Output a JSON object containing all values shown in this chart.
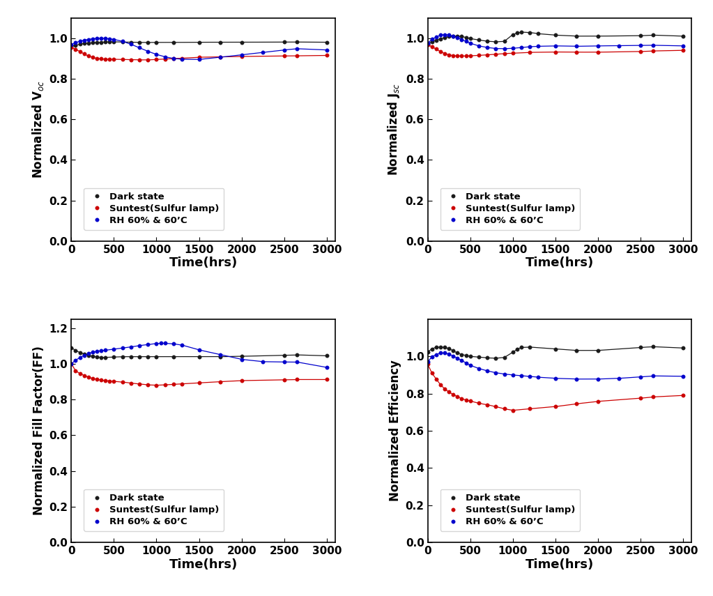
{
  "voc": {
    "dark": {
      "x": [
        0,
        50,
        100,
        150,
        200,
        250,
        300,
        350,
        400,
        450,
        500,
        600,
        700,
        800,
        900,
        1000,
        1200,
        1500,
        1750,
        2000,
        2500,
        2650,
        3000
      ],
      "y": [
        0.96,
        0.965,
        0.97,
        0.974,
        0.976,
        0.978,
        0.979,
        0.98,
        0.981,
        0.982,
        0.982,
        0.981,
        0.98,
        0.979,
        0.979,
        0.979,
        0.979,
        0.98,
        0.98,
        0.98,
        0.981,
        0.981,
        0.98
      ]
    },
    "suntest": {
      "x": [
        0,
        50,
        100,
        150,
        200,
        250,
        300,
        350,
        400,
        450,
        500,
        600,
        700,
        800,
        900,
        1000,
        1100,
        1200,
        1300,
        1500,
        1750,
        2000,
        2500,
        2650,
        3000
      ],
      "y": [
        0.955,
        0.945,
        0.935,
        0.922,
        0.912,
        0.905,
        0.9,
        0.898,
        0.897,
        0.896,
        0.896,
        0.895,
        0.894,
        0.893,
        0.893,
        0.895,
        0.897,
        0.899,
        0.901,
        0.906,
        0.908,
        0.91,
        0.912,
        0.913,
        0.915
      ]
    },
    "rh": {
      "x": [
        0,
        50,
        100,
        150,
        200,
        250,
        300,
        350,
        400,
        450,
        500,
        600,
        700,
        800,
        900,
        1000,
        1100,
        1200,
        1300,
        1500,
        1750,
        2000,
        2250,
        2500,
        2650,
        3000
      ],
      "y": [
        0.968,
        0.978,
        0.985,
        0.99,
        0.994,
        0.997,
        0.999,
        1.0,
        0.999,
        0.997,
        0.994,
        0.985,
        0.97,
        0.953,
        0.935,
        0.92,
        0.908,
        0.9,
        0.896,
        0.895,
        0.906,
        0.918,
        0.93,
        0.942,
        0.948,
        0.942
      ]
    },
    "ylabel": "Normalized V$_{oc}$",
    "ylim": [
      0.0,
      1.1
    ],
    "yticks": [
      0.0,
      0.2,
      0.4,
      0.6,
      0.8,
      1.0
    ]
  },
  "jsc": {
    "dark": {
      "x": [
        0,
        50,
        100,
        150,
        200,
        250,
        300,
        350,
        400,
        450,
        500,
        600,
        700,
        800,
        900,
        1000,
        1050,
        1100,
        1200,
        1300,
        1500,
        1750,
        2000,
        2500,
        2650,
        3000
      ],
      "y": [
        0.972,
        0.982,
        0.99,
        0.997,
        1.003,
        1.008,
        1.01,
        1.01,
        1.008,
        1.004,
        0.998,
        0.991,
        0.985,
        0.982,
        0.984,
        1.018,
        1.025,
        1.03,
        1.028,
        1.022,
        1.015,
        1.01,
        1.01,
        1.012,
        1.015,
        1.01
      ]
    },
    "suntest": {
      "x": [
        0,
        50,
        100,
        150,
        200,
        250,
        300,
        350,
        400,
        450,
        500,
        600,
        700,
        800,
        900,
        1000,
        1200,
        1500,
        1750,
        2000,
        2500,
        2650,
        3000
      ],
      "y": [
        0.968,
        0.958,
        0.946,
        0.934,
        0.924,
        0.918,
        0.914,
        0.912,
        0.912,
        0.912,
        0.913,
        0.915,
        0.918,
        0.921,
        0.924,
        0.926,
        0.93,
        0.932,
        0.931,
        0.931,
        0.934,
        0.937,
        0.94
      ]
    },
    "rh": {
      "x": [
        0,
        50,
        100,
        150,
        200,
        250,
        300,
        350,
        400,
        450,
        500,
        600,
        700,
        800,
        900,
        1000,
        1100,
        1200,
        1300,
        1500,
        1750,
        2000,
        2250,
        2500,
        2650,
        3000
      ],
      "y": [
        0.975,
        0.995,
        1.005,
        1.015,
        1.018,
        1.016,
        1.01,
        1.002,
        0.993,
        0.984,
        0.975,
        0.962,
        0.954,
        0.949,
        0.948,
        0.95,
        0.954,
        0.958,
        0.96,
        0.962,
        0.96,
        0.962,
        0.963,
        0.964,
        0.965,
        0.962
      ]
    },
    "ylabel": "Normalized J$_{sc}$",
    "ylim": [
      0.0,
      1.1
    ],
    "yticks": [
      0.0,
      0.2,
      0.4,
      0.6,
      0.8,
      1.0
    ]
  },
  "ff": {
    "dark": {
      "x": [
        0,
        50,
        100,
        150,
        200,
        250,
        300,
        350,
        400,
        500,
        600,
        700,
        800,
        900,
        1000,
        1200,
        1500,
        1750,
        2000,
        2500,
        2650,
        3000
      ],
      "y": [
        1.09,
        1.075,
        1.063,
        1.055,
        1.048,
        1.042,
        1.038,
        1.036,
        1.036,
        1.038,
        1.04,
        1.04,
        1.04,
        1.04,
        1.04,
        1.04,
        1.04,
        1.04,
        1.042,
        1.048,
        1.05,
        1.045
      ]
    },
    "suntest": {
      "x": [
        0,
        50,
        100,
        150,
        200,
        250,
        300,
        350,
        400,
        450,
        500,
        600,
        700,
        800,
        900,
        1000,
        1100,
        1200,
        1300,
        1500,
        1750,
        2000,
        2500,
        2650,
        3000
      ],
      "y": [
        1.0,
        0.962,
        0.945,
        0.935,
        0.925,
        0.918,
        0.913,
        0.909,
        0.906,
        0.904,
        0.902,
        0.898,
        0.892,
        0.887,
        0.882,
        0.88,
        0.882,
        0.885,
        0.888,
        0.893,
        0.9,
        0.906,
        0.91,
        0.912,
        0.912
      ]
    },
    "rh": {
      "x": [
        0,
        50,
        100,
        150,
        200,
        250,
        300,
        350,
        400,
        500,
        600,
        700,
        800,
        900,
        1000,
        1050,
        1100,
        1200,
        1300,
        1500,
        1750,
        2000,
        2250,
        2500,
        2650,
        3000
      ],
      "y": [
        1.0,
        1.02,
        1.035,
        1.048,
        1.058,
        1.065,
        1.07,
        1.074,
        1.076,
        1.082,
        1.088,
        1.095,
        1.102,
        1.108,
        1.114,
        1.115,
        1.115,
        1.112,
        1.105,
        1.078,
        1.052,
        1.025,
        1.012,
        1.01,
        1.01,
        0.98
      ]
    },
    "ylabel": "Normalized Fill Factor(FF)",
    "ylim": [
      0.0,
      1.25
    ],
    "yticks": [
      0.0,
      0.2,
      0.4,
      0.6,
      0.8,
      1.0,
      1.2
    ]
  },
  "eff": {
    "dark": {
      "x": [
        0,
        50,
        100,
        150,
        200,
        250,
        300,
        350,
        400,
        450,
        500,
        600,
        700,
        800,
        900,
        1000,
        1050,
        1100,
        1200,
        1500,
        1750,
        2000,
        2500,
        2650,
        3000
      ],
      "y": [
        1.025,
        1.04,
        1.05,
        1.05,
        1.048,
        1.042,
        1.03,
        1.018,
        1.01,
        1.005,
        1.0,
        0.996,
        0.992,
        0.99,
        0.994,
        1.022,
        1.038,
        1.048,
        1.05,
        1.04,
        1.032,
        1.032,
        1.048,
        1.052,
        1.045
      ]
    },
    "suntest": {
      "x": [
        0,
        50,
        100,
        150,
        200,
        250,
        300,
        350,
        400,
        450,
        500,
        600,
        700,
        800,
        900,
        1000,
        1200,
        1500,
        1750,
        2000,
        2500,
        2650,
        3000
      ],
      "y": [
        0.958,
        0.91,
        0.878,
        0.848,
        0.825,
        0.808,
        0.795,
        0.783,
        0.773,
        0.765,
        0.76,
        0.748,
        0.74,
        0.73,
        0.718,
        0.71,
        0.718,
        0.73,
        0.745,
        0.758,
        0.775,
        0.782,
        0.79
      ]
    },
    "rh": {
      "x": [
        0,
        50,
        100,
        150,
        200,
        250,
        300,
        350,
        400,
        450,
        500,
        600,
        700,
        800,
        900,
        1000,
        1100,
        1200,
        1300,
        1500,
        1750,
        2000,
        2250,
        2500,
        2650,
        3000
      ],
      "y": [
        0.97,
        0.998,
        1.01,
        1.018,
        1.018,
        1.012,
        1.002,
        0.99,
        0.978,
        0.965,
        0.952,
        0.935,
        0.922,
        0.912,
        0.905,
        0.9,
        0.896,
        0.892,
        0.888,
        0.882,
        0.878,
        0.878,
        0.882,
        0.89,
        0.895,
        0.893
      ]
    },
    "ylabel": "Normalized Efficiency",
    "ylim": [
      0.0,
      1.2
    ],
    "yticks": [
      0.0,
      0.2,
      0.4,
      0.6,
      0.8,
      1.0
    ]
  },
  "xlabel": "Time(hrs)",
  "xlim": [
    0,
    3100
  ],
  "xticks": [
    0,
    500,
    1000,
    1500,
    2000,
    2500,
    3000
  ],
  "colors": {
    "dark": "#1a1a1a",
    "suntest": "#cc0000",
    "rh": "#0000cc"
  },
  "legend_labels": [
    "Dark state",
    "Suntest(Sulfur lamp)",
    "RH 60% & 60’C"
  ],
  "marker": "o",
  "markersize": 4.0,
  "linewidth": 0.9
}
